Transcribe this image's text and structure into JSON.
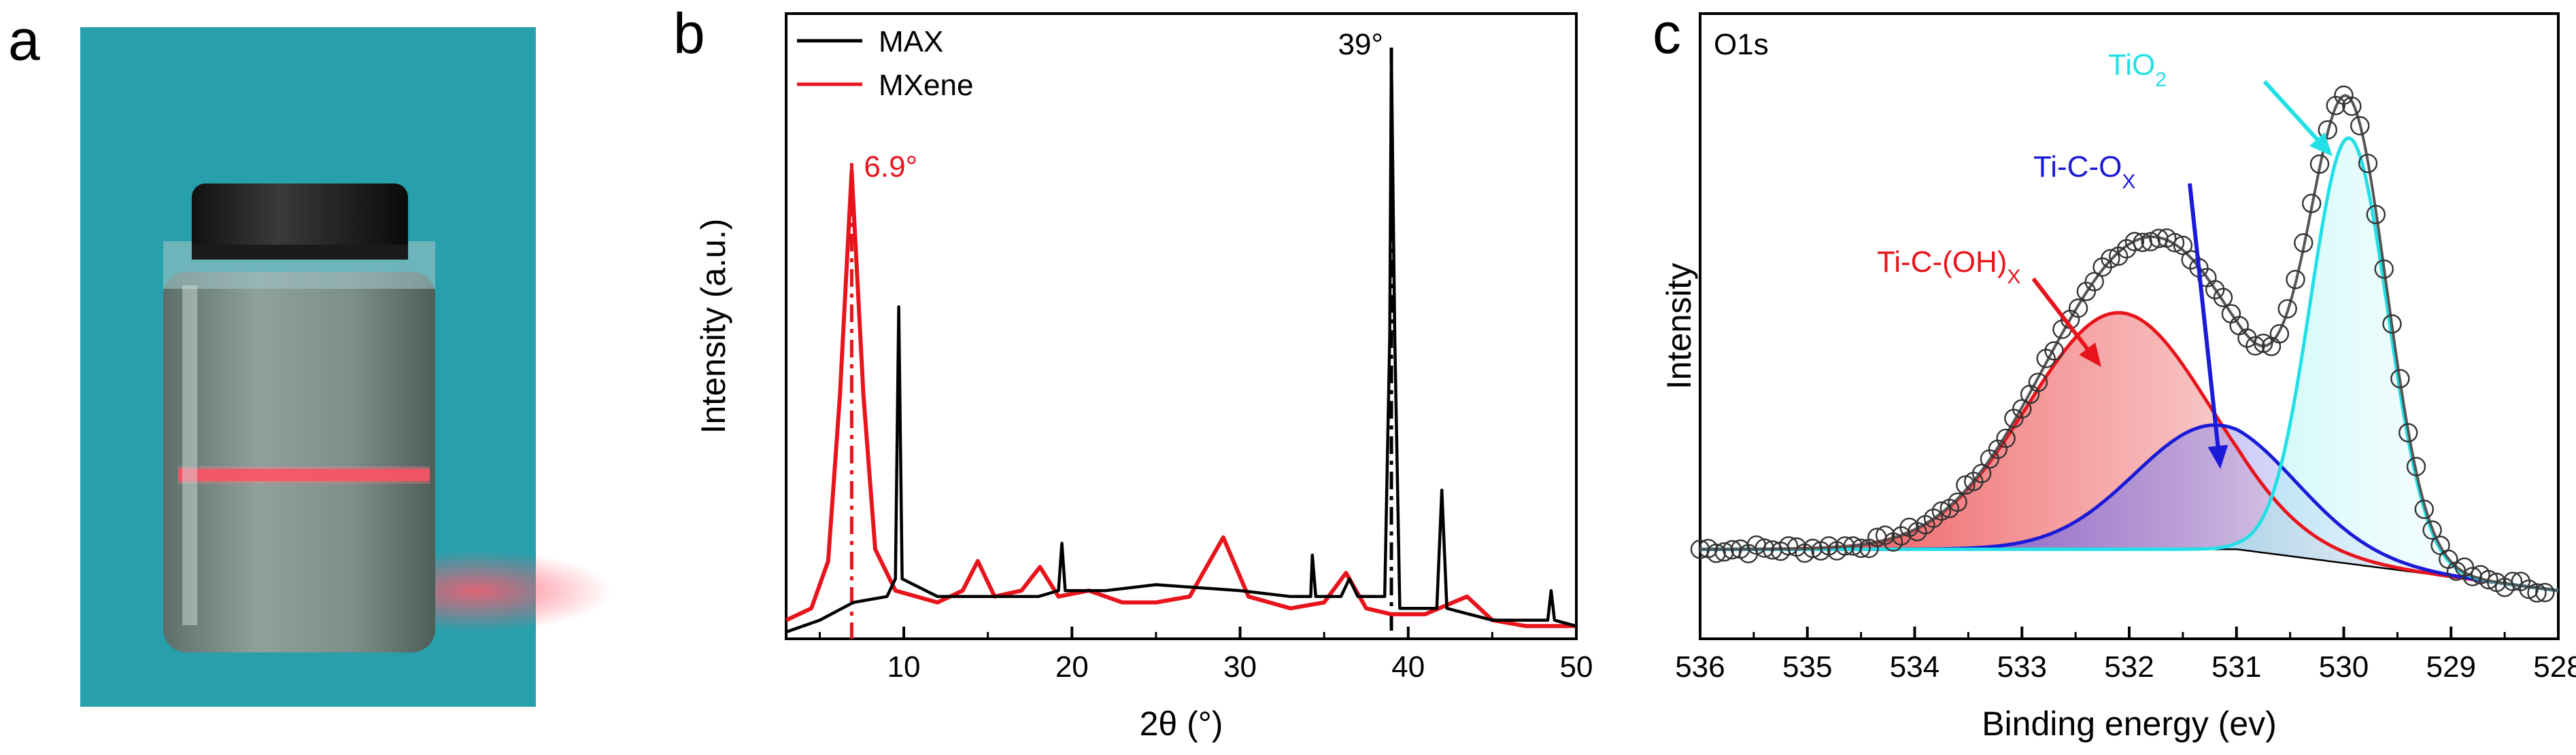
{
  "panels": {
    "a": {
      "letter": "a"
    },
    "b": {
      "letter": "b"
    },
    "c": {
      "letter": "c"
    }
  },
  "colors": {
    "max": "#000000",
    "mxene": "#e8141c",
    "tio2": "#22e0e6",
    "ticox": "#1a1ad8",
    "ticoh": "#e8141c",
    "raw": "#000000",
    "envelope": "#555555",
    "photo_bg": "#2aa6b2"
  },
  "chart_data": [
    {
      "type": "line",
      "panel": "b",
      "xlabel": "2θ (°)",
      "ylabel": "Intensity (a.u.)",
      "xlim": [
        3,
        50
      ],
      "ylim": [
        0,
        1.0
      ],
      "xticks": [
        10,
        20,
        30,
        40,
        50
      ],
      "legend_position": "top-left",
      "series": [
        {
          "name": "MAX",
          "color": "#000000",
          "points": [
            [
              3,
              0.0
            ],
            [
              5,
              0.02
            ],
            [
              7,
              0.05
            ],
            [
              9,
              0.06
            ],
            [
              9.5,
              0.09
            ],
            [
              9.7,
              0.55
            ],
            [
              9.9,
              0.09
            ],
            [
              12,
              0.06
            ],
            [
              15,
              0.06
            ],
            [
              18,
              0.06
            ],
            [
              19.2,
              0.07
            ],
            [
              19.4,
              0.15
            ],
            [
              19.6,
              0.07
            ],
            [
              22,
              0.07
            ],
            [
              25,
              0.08
            ],
            [
              30,
              0.07
            ],
            [
              33,
              0.06
            ],
            [
              34.2,
              0.06
            ],
            [
              34.3,
              0.13
            ],
            [
              34.5,
              0.06
            ],
            [
              36,
              0.06
            ],
            [
              36.5,
              0.09
            ],
            [
              37,
              0.06
            ],
            [
              38.6,
              0.06
            ],
            [
              38.9,
              0.5
            ],
            [
              39.0,
              0.98
            ],
            [
              39.2,
              0.5
            ],
            [
              39.5,
              0.04
            ],
            [
              41.7,
              0.04
            ],
            [
              42.0,
              0.24
            ],
            [
              42.3,
              0.04
            ],
            [
              45,
              0.02
            ],
            [
              48.3,
              0.02
            ],
            [
              48.5,
              0.07
            ],
            [
              48.7,
              0.02
            ],
            [
              50,
              0.01
            ]
          ]
        },
        {
          "name": "MXene",
          "color": "#e8141c",
          "points": [
            [
              3,
              0.02
            ],
            [
              4.5,
              0.04
            ],
            [
              5.5,
              0.12
            ],
            [
              6.2,
              0.4
            ],
            [
              6.9,
              0.78
            ],
            [
              7.6,
              0.4
            ],
            [
              8.3,
              0.14
            ],
            [
              9.5,
              0.07
            ],
            [
              12,
              0.05
            ],
            [
              13.5,
              0.07
            ],
            [
              14.4,
              0.12
            ],
            [
              15.4,
              0.06
            ],
            [
              17,
              0.07
            ],
            [
              18.1,
              0.11
            ],
            [
              19.2,
              0.06
            ],
            [
              21,
              0.07
            ],
            [
              23,
              0.05
            ],
            [
              25,
              0.05
            ],
            [
              27,
              0.06
            ],
            [
              29.0,
              0.16
            ],
            [
              30.5,
              0.06
            ],
            [
              33,
              0.04
            ],
            [
              35,
              0.05
            ],
            [
              36.3,
              0.1
            ],
            [
              37.5,
              0.04
            ],
            [
              39,
              0.03
            ],
            [
              41,
              0.03
            ],
            [
              43.5,
              0.06
            ],
            [
              45,
              0.02
            ],
            [
              47,
              0.01
            ],
            [
              50,
              0.01
            ]
          ]
        }
      ],
      "annotations": [
        {
          "label": "6.9°",
          "x": 6.9,
          "color": "#e8141c"
        },
        {
          "label": "39°",
          "x": 39.0,
          "color": "#000000"
        }
      ]
    },
    {
      "type": "line",
      "panel": "c",
      "title": "O1s",
      "xlabel": "Binding energy (ev)",
      "ylabel": "Intensity",
      "xlim": [
        536,
        528
      ],
      "ylim": [
        0,
        1.0
      ],
      "xticks": [
        536,
        535,
        534,
        533,
        532,
        531,
        530,
        529,
        528
      ],
      "reversed_x": true,
      "background_level": 0.14,
      "components": [
        {
          "label": "Ti-C-(OH)",
          "subscript": "X",
          "center": 532.1,
          "amplitude": 0.4,
          "sigma": 0.85,
          "color": "#e8141c"
        },
        {
          "label": "Ti-C-O",
          "subscript": "X",
          "center": 531.2,
          "amplitude": 0.21,
          "sigma": 0.75,
          "color": "#1a1ad8"
        },
        {
          "label": "TiO",
          "subscript": "2",
          "center": 529.95,
          "amplitude": 0.72,
          "sigma": 0.36,
          "color": "#22e0e6"
        }
      ]
    }
  ]
}
